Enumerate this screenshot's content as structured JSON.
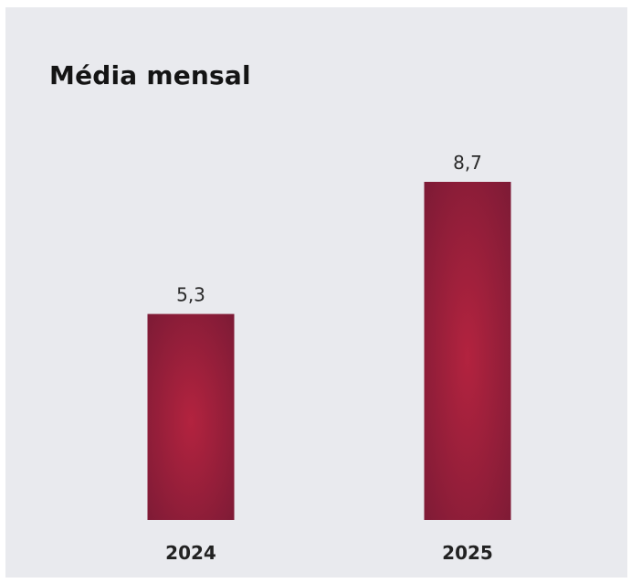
{
  "colors": {
    "background": "#e9eaee",
    "bar_edge": "#7a1a35",
    "bar_center": "#b3233f"
  },
  "chart_data": {
    "type": "bar",
    "title": "Média mensal",
    "categories": [
      "2024",
      "2025"
    ],
    "values": [
      5.3,
      8.7
    ],
    "value_labels": [
      "5,3",
      "8,7"
    ],
    "xlabel": "",
    "ylabel": "",
    "ylim": [
      0,
      8.7
    ],
    "grid": false,
    "legend": "none"
  }
}
